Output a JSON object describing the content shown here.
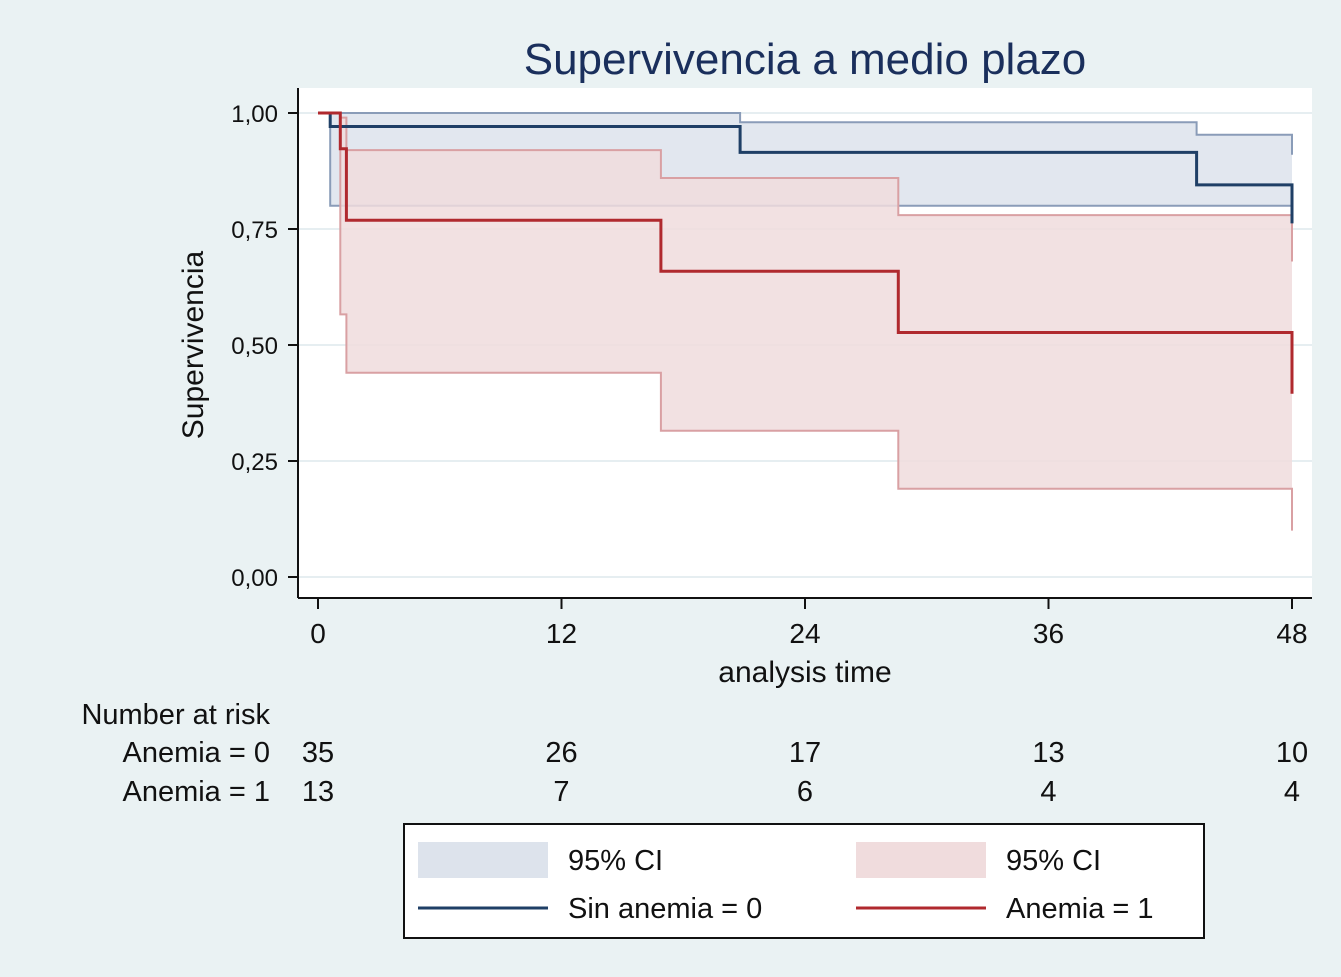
{
  "chart_data": {
    "type": "line",
    "subtype": "kaplan-meier",
    "title": "Supervivencia a medio plazo",
    "xlabel": "analysis time",
    "ylabel": "Supervivencia",
    "xlim": [
      0,
      48
    ],
    "ylim": [
      0,
      1
    ],
    "xticks": [
      0,
      12,
      24,
      36,
      48
    ],
    "yticks": [
      {
        "value": 0,
        "label": "0,00"
      },
      {
        "value": 0.25,
        "label": "0,25"
      },
      {
        "value": 0.5,
        "label": "0,50"
      },
      {
        "value": 0.75,
        "label": "0,75"
      },
      {
        "value": 1,
        "label": "1,00"
      }
    ],
    "grid": true,
    "series": [
      {
        "name": "Sin anemia = 0",
        "color": "#1f3f66",
        "ci_color": "#dde3ec",
        "ci_line_color": "#8a9cb8",
        "steps": [
          [
            0,
            1.0
          ],
          [
            0.6,
            0.971
          ],
          [
            20.8,
            0.915
          ],
          [
            43.3,
            0.845
          ],
          [
            48,
            0.762
          ]
        ],
        "ci_upper": [
          [
            0,
            1.0
          ],
          [
            0.6,
            1.0
          ],
          [
            20.8,
            0.98
          ],
          [
            43.3,
            0.953
          ],
          [
            48,
            0.91
          ]
        ],
        "ci_lower": [
          [
            0,
            1.0
          ],
          [
            0.6,
            0.8
          ],
          [
            20.8,
            0.8
          ],
          [
            43.3,
            0.8
          ],
          [
            48,
            0.8
          ]
        ]
      },
      {
        "name": "Anemia = 1",
        "color": "#b0292e",
        "ci_color": "#f0dcdd",
        "ci_line_color": "#d9a0a3",
        "steps": [
          [
            0,
            1.0
          ],
          [
            1.1,
            0.923
          ],
          [
            1.4,
            0.769
          ],
          [
            16.9,
            0.659
          ],
          [
            28.6,
            0.527
          ],
          [
            48,
            0.395
          ]
        ],
        "ci_upper": [
          [
            0,
            1.0
          ],
          [
            1.1,
            0.99
          ],
          [
            1.4,
            0.92
          ],
          [
            16.9,
            0.86
          ],
          [
            28.6,
            0.78
          ],
          [
            48,
            0.68
          ]
        ],
        "ci_lower": [
          [
            0,
            1.0
          ],
          [
            1.1,
            0.566
          ],
          [
            1.4,
            0.44
          ],
          [
            16.9,
            0.315
          ],
          [
            28.6,
            0.19
          ],
          [
            48,
            0.1
          ]
        ]
      }
    ],
    "risk_table": {
      "header": "Number at risk",
      "rows": [
        {
          "label": "Anemia = 0",
          "values": [
            "35",
            "26",
            "17",
            "13",
            "10"
          ]
        },
        {
          "label": "Anemia = 1",
          "values": [
            "13",
            "7",
            "6",
            "4",
            "4"
          ]
        }
      ]
    },
    "legend": {
      "placement": "bottom",
      "items": [
        {
          "label": "95% CI",
          "kind": "band",
          "series": 0
        },
        {
          "label": "95% CI",
          "kind": "band",
          "series": 1
        },
        {
          "label": "Sin anemia = 0",
          "kind": "line",
          "series": 0
        },
        {
          "label": "Anemia = 1",
          "kind": "line",
          "series": 1
        }
      ]
    }
  }
}
